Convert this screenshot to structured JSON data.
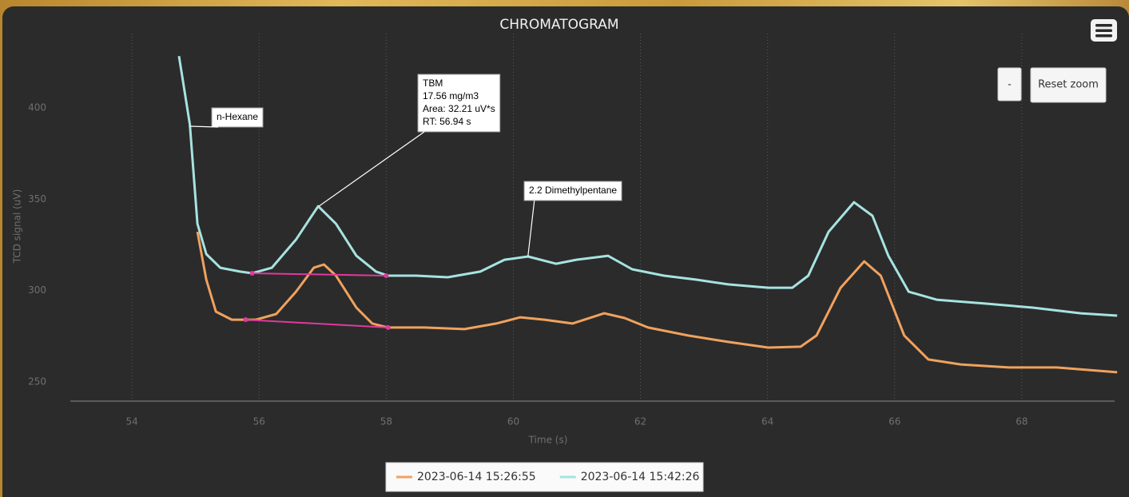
{
  "chart_data": {
    "type": "line",
    "title": "CHROMATOGRAM",
    "x_label": "Time (s)",
    "y_label": "TCD signal (uV)",
    "xlim": [
      53.03,
      69.46
    ],
    "ylim": [
      239.5,
      432
    ],
    "xticks": [
      54,
      56,
      58,
      60,
      62,
      64,
      66,
      68
    ],
    "yticks": [
      250,
      300,
      350,
      400
    ],
    "grid": "x",
    "legend": "bottom",
    "series": [
      {
        "name": "2023-06-14 15:26:55",
        "color": "#f0a25e",
        "x": [
          55.03,
          55.17,
          55.32,
          55.57,
          55.95,
          56.27,
          56.58,
          56.86,
          57.02,
          57.21,
          57.53,
          57.78,
          58.03,
          58.6,
          59.23,
          59.73,
          60.11,
          60.49,
          60.93,
          61.43,
          61.75,
          62.12,
          62.75,
          63.38,
          64.01,
          64.52,
          64.77,
          65.15,
          65.52,
          65.78,
          66.15,
          66.53,
          67.04,
          67.8,
          68.55,
          69.5
        ],
        "values": [
          332.2,
          306,
          288.5,
          284.1,
          284.1,
          287.2,
          299.4,
          312.5,
          314.3,
          308.2,
          290.7,
          282,
          279.8,
          279.8,
          278.9,
          282,
          285.4,
          284.1,
          282,
          287.6,
          285,
          279.8,
          275.4,
          271.9,
          268.8,
          269.3,
          275.4,
          301.6,
          316,
          308.2,
          275.4,
          262.3,
          259.6,
          257.9,
          257.9,
          255.3
        ]
      },
      {
        "name": "2023-06-14 15:42:26",
        "color": "#a6e3e0",
        "x": [
          54.74,
          54.91,
          55.03,
          55.17,
          55.39,
          55.7,
          55.89,
          56.2,
          56.58,
          56.93,
          57.21,
          57.53,
          57.84,
          58.03,
          58.47,
          58.97,
          59.48,
          59.86,
          60.23,
          60.67,
          60.99,
          61.49,
          61.87,
          62.37,
          62.88,
          63.38,
          64.01,
          64.39,
          64.64,
          64.96,
          65.36,
          65.65,
          65.9,
          66.22,
          66.66,
          67.42,
          68.17,
          68.93,
          69.5
        ],
        "values": [
          428.4,
          391,
          336.6,
          320,
          312.5,
          310.4,
          309.5,
          312.5,
          327.9,
          346.2,
          336.6,
          319.1,
          310.4,
          308.2,
          308.2,
          307.3,
          310.4,
          316.9,
          318.7,
          314.7,
          316.9,
          319.1,
          311.7,
          308.2,
          306,
          303.4,
          301.6,
          301.6,
          308.2,
          332.2,
          348.4,
          341,
          319.1,
          299.4,
          295,
          292.9,
          290.7,
          287.6,
          286.3
        ]
      }
    ],
    "integration_lines": [
      {
        "color": "#e0399c",
        "x": [
          55.89,
          58.0
        ],
        "values": [
          309.5,
          308.2
        ]
      },
      {
        "color": "#e0399c",
        "x": [
          55.79,
          58.03
        ],
        "values": [
          284.1,
          279.8
        ]
      }
    ],
    "annotations": [
      {
        "lines": [
          "n-Hexane"
        ],
        "x": 54.91,
        "y": 390
      },
      {
        "lines": [
          "TBM",
          "17.56 mg/m3",
          "Area: 32.21 uV*s",
          "RT: 56.94 s"
        ],
        "x": 56.94,
        "y": 346.2
      },
      {
        "lines": [
          "2.2 Dimethylpentane"
        ],
        "x": 60.23,
        "y": 318.7
      }
    ],
    "buttons": [
      "-",
      "Reset zoom"
    ]
  }
}
